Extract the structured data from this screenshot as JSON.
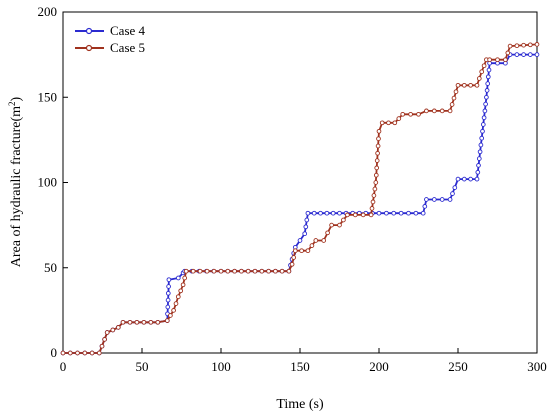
{
  "chart_data": {
    "type": "line",
    "xlabel": "Time (s)",
    "ylabel": "Area of hydraulic fracture(m",
    "ylabel_sup": "2",
    "ylabel_close": ")",
    "xlim": [
      0,
      300
    ],
    "ylim": [
      0,
      200
    ],
    "xticks": [
      0,
      50,
      100,
      150,
      200,
      250,
      300
    ],
    "yticks": [
      0,
      50,
      100,
      150,
      200
    ],
    "grid": false,
    "legend_position": "top-left",
    "series": [
      {
        "name": "Case 4",
        "color": "#2b2bd0",
        "marker_fill": "#ffffff",
        "x": [
          0,
          23,
          28,
          35,
          38,
          60,
          66,
          67,
          73,
          76,
          77,
          100,
          143,
          145,
          147,
          153,
          155,
          175,
          200,
          228,
          230,
          245,
          248,
          250,
          262,
          268,
          270,
          280,
          283,
          300
        ],
        "y": [
          0,
          0,
          12,
          15,
          18,
          18,
          19,
          43,
          44,
          47,
          48,
          48,
          48,
          55,
          62,
          70,
          82,
          82,
          82,
          82,
          90,
          90,
          97,
          102,
          102,
          150,
          170,
          170,
          175,
          175
        ]
      },
      {
        "name": "Case 5",
        "color": "#a0321e",
        "marker_fill": "#ffffff",
        "x": [
          0,
          23,
          28,
          35,
          38,
          60,
          66,
          70,
          73,
          76,
          78,
          100,
          143,
          145,
          147,
          155,
          160,
          165,
          170,
          175,
          180,
          195,
          198,
          200,
          202,
          210,
          215,
          225,
          230,
          245,
          250,
          262,
          265,
          268,
          270,
          280,
          283,
          300
        ],
        "y": [
          0,
          0,
          12,
          15,
          18,
          18,
          19,
          25,
          33,
          40,
          48,
          48,
          48,
          52,
          60,
          60,
          66,
          66,
          75,
          75,
          81,
          81,
          100,
          130,
          135,
          135,
          140,
          140,
          142,
          142,
          157,
          157,
          165,
          172,
          172,
          172,
          180,
          181
        ]
      }
    ]
  }
}
